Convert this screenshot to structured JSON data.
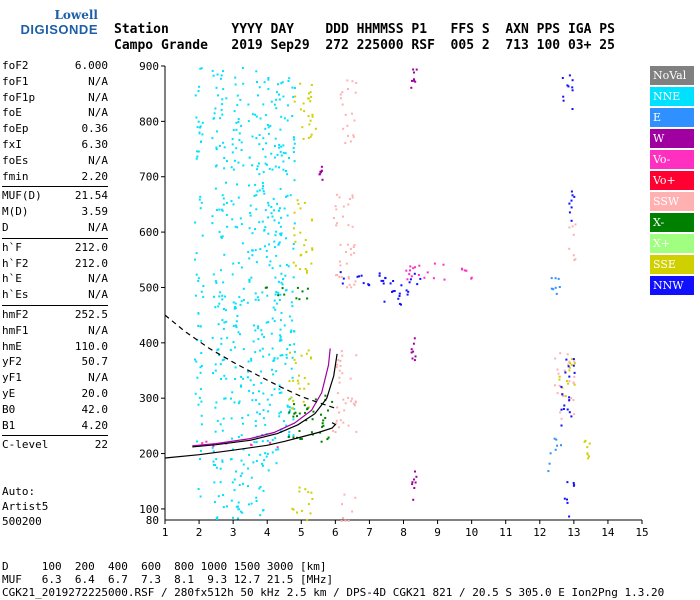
{
  "logo": {
    "line1": "Lowell",
    "line2": "DIGISONDE"
  },
  "header": {
    "line1": "Station        YYYY DAY    DDD HHMMSS P1   FFS S  AXN PPS IGA PS",
    "line2": "Campo Grande   2019 Sep29  272 225000 RSF  005 2  713 100 03+ 25"
  },
  "param_groups": [
    [
      {
        "name": "foF2",
        "value": "6.000"
      },
      {
        "name": "foF1",
        "value": "N/A"
      },
      {
        "name": "foF1p",
        "value": "N/A"
      },
      {
        "name": "foE",
        "value": "N/A"
      },
      {
        "name": "foEp",
        "value": "0.36"
      },
      {
        "name": "fxI",
        "value": "6.30"
      },
      {
        "name": "foEs",
        "value": "N/A"
      },
      {
        "name": "fmin",
        "value": "2.20"
      }
    ],
    [
      {
        "name": "MUF(D)",
        "value": "21.54"
      },
      {
        "name": "M(D)",
        "value": "3.59"
      },
      {
        "name": "D",
        "value": "N/A"
      }
    ],
    [
      {
        "name": "h`F",
        "value": "212.0"
      },
      {
        "name": "h`F2",
        "value": "212.0"
      },
      {
        "name": "h`E",
        "value": "N/A"
      },
      {
        "name": "h`Es",
        "value": "N/A"
      }
    ],
    [
      {
        "name": "hmF2",
        "value": "252.5"
      },
      {
        "name": "hmF1",
        "value": "N/A"
      },
      {
        "name": "hmE",
        "value": "110.0"
      },
      {
        "name": "yF2",
        "value": "50.7"
      },
      {
        "name": "yF1",
        "value": "N/A"
      },
      {
        "name": "yE",
        "value": "20.0"
      },
      {
        "name": "B0",
        "value": "42.0"
      },
      {
        "name": "B1",
        "value": "4.20"
      }
    ],
    [
      {
        "name": "C-level",
        "value": "22"
      }
    ]
  ],
  "notes": [
    "Auto:",
    "Artist5",
    "500200"
  ],
  "legend": [
    {
      "label": "NoVal",
      "color": "#808080"
    },
    {
      "label": "NNE",
      "color": "#00e0ff"
    },
    {
      "label": "E",
      "color": "#3090ff"
    },
    {
      "label": "W",
      "color": "#a000a0"
    },
    {
      "label": "Vo-",
      "color": "#ff30c0"
    },
    {
      "label": "Vo+",
      "color": "#ff0030"
    },
    {
      "label": "SSW",
      "color": "#ffb0b0"
    },
    {
      "label": "X-",
      "color": "#008000"
    },
    {
      "label": "X+",
      "color": "#a0ff80"
    },
    {
      "label": "SSE",
      "color": "#d0d000"
    },
    {
      "label": "NNW",
      "color": "#1010ff"
    }
  ],
  "footer": {
    "line1": "D     100  200  400  600  800 1000 1500 3000 [km]",
    "line2": "MUF   6.3  6.4  6.7  7.3  8.1  9.3 12.7 21.5 [MHz]",
    "line3": "CGK21_2019272225000.RSF / 280fx512h 50 kHz 2.5 km / DPS-4D CGK21 821 / 20.5 S 305.0 E Ion2Png 1.3.20"
  },
  "chart_data": {
    "type": "scatter",
    "xlim": [
      1,
      15
    ],
    "ylim": [
      80,
      900
    ],
    "x_ticks": [
      1,
      2,
      3,
      4,
      5,
      6,
      7,
      8,
      9,
      10,
      11,
      12,
      13,
      14,
      15
    ],
    "y_ticks": [
      100,
      200,
      300,
      400,
      500,
      600,
      700,
      800,
      900
    ],
    "y_bottom_label": "80",
    "grid": false,
    "series": [
      {
        "name": "NNE",
        "color": "#00e0ff",
        "clusters": [
          [
            1.85,
            120,
            2.1,
            900
          ],
          [
            2.35,
            80,
            2.8,
            900
          ],
          [
            2.9,
            80,
            3.3,
            900
          ],
          [
            3.4,
            90,
            3.9,
            900
          ],
          [
            3.9,
            170,
            4.4,
            900
          ],
          [
            4.3,
            230,
            4.8,
            900
          ]
        ]
      },
      {
        "name": "SSE",
        "color": "#d0d000",
        "clusters": [
          [
            4.6,
            280,
            5.3,
            390
          ],
          [
            4.7,
            520,
            5.3,
            660
          ],
          [
            4.7,
            770,
            5.4,
            880
          ],
          [
            4.7,
            80,
            5.3,
            150
          ],
          [
            12.5,
            300,
            13.0,
            380
          ],
          [
            13.2,
            180,
            13.5,
            230
          ]
        ]
      },
      {
        "name": "SSW",
        "color": "#ffb0b0",
        "clusters": [
          [
            5.9,
            240,
            6.6,
            400
          ],
          [
            5.9,
            500,
            6.6,
            670
          ],
          [
            6.1,
            760,
            6.6,
            880
          ],
          [
            6.1,
            80,
            6.6,
            130
          ],
          [
            12.4,
            260,
            13.0,
            390
          ],
          [
            12.8,
            550,
            13.1,
            620
          ]
        ]
      },
      {
        "name": "NNW",
        "color": "#1010ff",
        "clusters": [
          [
            6.0,
            505,
            8.6,
            530
          ],
          [
            12.6,
            240,
            13.0,
            380
          ],
          [
            12.8,
            600,
            13.0,
            680
          ],
          [
            12.6,
            820,
            13.0,
            900
          ],
          [
            12.7,
            80,
            13.0,
            160
          ],
          [
            7.3,
            470,
            8.4,
            520
          ]
        ]
      },
      {
        "name": "Vo-",
        "color": "#ff30c0",
        "clusters": [
          [
            8.0,
            510,
            10.0,
            545
          ],
          [
            2.0,
            212,
            4.3,
            225
          ]
        ]
      },
      {
        "name": "X-",
        "color": "#008000",
        "clusters": [
          [
            4.6,
            220,
            5.9,
            310
          ],
          [
            3.8,
            480,
            5.2,
            505
          ]
        ]
      },
      {
        "name": "W",
        "color": "#a000a0",
        "clusters": [
          [
            8.2,
            100,
            8.4,
            170
          ],
          [
            8.2,
            370,
            8.4,
            410
          ],
          [
            8.2,
            830,
            8.4,
            900
          ],
          [
            5.5,
            690,
            5.6,
            720
          ]
        ]
      },
      {
        "name": "E",
        "color": "#3090ff",
        "clusters": [
          [
            12.2,
            170,
            12.6,
            230
          ],
          [
            12.3,
            490,
            12.6,
            520
          ]
        ]
      }
    ],
    "curves": [
      {
        "name": "profile",
        "color": "#000000",
        "points": [
          [
            1.0,
            192
          ],
          [
            2.0,
            198
          ],
          [
            3.0,
            206
          ],
          [
            4.0,
            215
          ],
          [
            4.5,
            222
          ],
          [
            5.0,
            230
          ],
          [
            5.5,
            238
          ],
          [
            5.9,
            246
          ],
          [
            6.0,
            252.5
          ],
          [
            5.9,
            256
          ]
        ]
      },
      {
        "name": "trace-x",
        "color": "#000000",
        "points": [
          [
            1.8,
            212
          ],
          [
            2.5,
            216
          ],
          [
            3.5,
            224
          ],
          [
            4.3,
            236
          ],
          [
            4.9,
            252
          ],
          [
            5.4,
            272
          ],
          [
            5.75,
            300
          ],
          [
            5.95,
            340
          ],
          [
            6.05,
            380
          ]
        ]
      },
      {
        "name": "trace-o",
        "color": "#a000a0",
        "points": [
          [
            1.8,
            214
          ],
          [
            2.5,
            218
          ],
          [
            3.5,
            227
          ],
          [
            4.2,
            238
          ],
          [
            4.8,
            255
          ],
          [
            5.3,
            278
          ],
          [
            5.6,
            310
          ],
          [
            5.8,
            360
          ],
          [
            5.85,
            390
          ]
        ]
      },
      {
        "name": "dashed",
        "color": "#000000",
        "dashed": true,
        "points": [
          [
            1.0,
            450
          ],
          [
            1.6,
            420
          ],
          [
            2.3,
            390
          ],
          [
            3.0,
            365
          ],
          [
            3.7,
            342
          ],
          [
            4.4,
            320
          ],
          [
            5.0,
            303
          ],
          [
            5.6,
            290
          ],
          [
            6.0,
            282
          ]
        ]
      }
    ]
  }
}
